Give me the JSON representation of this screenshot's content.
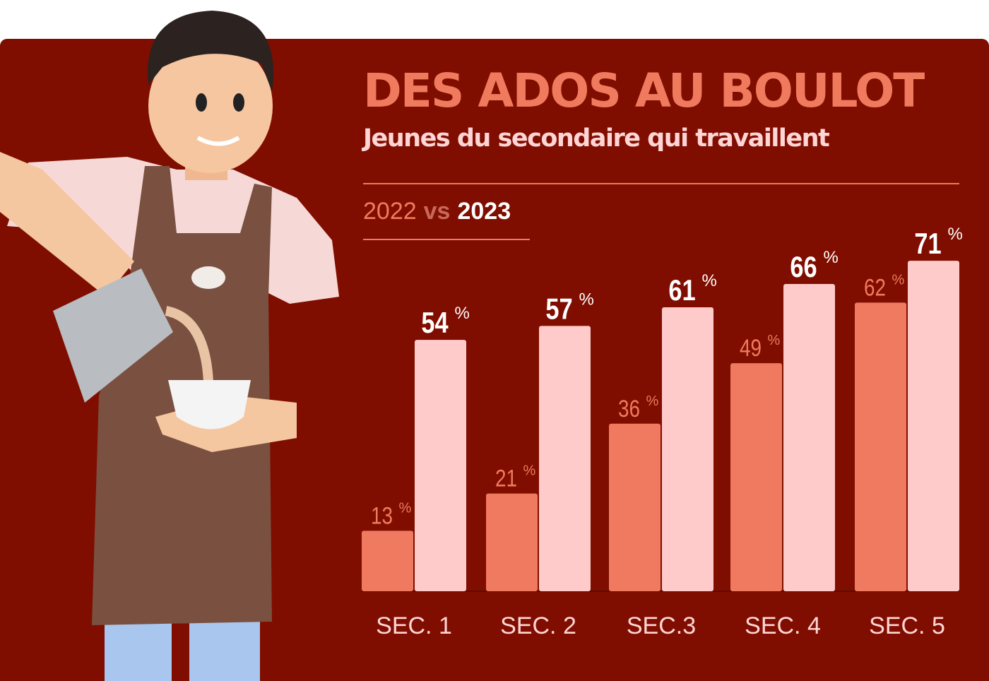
{
  "chart_data": {
    "type": "bar",
    "title": "DES ADOS AU BOULOT",
    "subtitle": "Jeunes du secondaire qui travaillent",
    "categories": [
      "SEC. 1",
      "SEC. 2",
      "SEC.3",
      "SEC. 4",
      "SEC. 5"
    ],
    "series": [
      {
        "name": "2022",
        "values": [
          13,
          21,
          36,
          49,
          62
        ],
        "color": "#ef7a5f"
      },
      {
        "name": "2023",
        "values": [
          54,
          57,
          61,
          66,
          71
        ],
        "color": "#ffcaca"
      }
    ],
    "legend": {
      "first": "2022",
      "separator": "vs",
      "second": "2023",
      "placement": "top-left"
    },
    "unit": "%",
    "ylim": [
      0,
      100
    ],
    "grid": false
  },
  "colors": {
    "background": "#7f0e00",
    "accent": "#f07a5e",
    "label_2023": "#ffffff",
    "category_label": "#ffd5d5"
  }
}
